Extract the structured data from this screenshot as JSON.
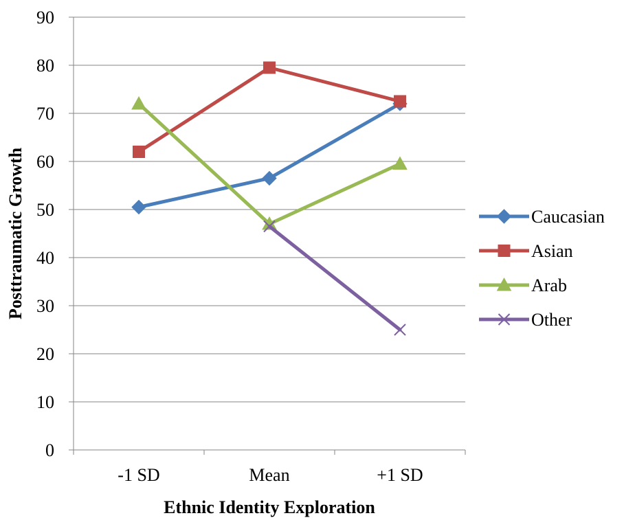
{
  "chart_data": {
    "type": "line",
    "title": "",
    "xlabel": "Ethnic Identity Exploration",
    "ylabel": "Posttraumatic Growth",
    "categories": [
      "-1 SD",
      "Mean",
      "+1 SD"
    ],
    "ylim": [
      0,
      90
    ],
    "yticks": [
      0,
      10,
      20,
      30,
      40,
      50,
      60,
      70,
      80,
      90
    ],
    "grid": true,
    "legend_position": "right",
    "series": [
      {
        "name": "Caucasian",
        "values": [
          50.5,
          56.5,
          72
        ],
        "color": "#4A7EBB",
        "marker": "diamond"
      },
      {
        "name": "Asian",
        "values": [
          62,
          79.5,
          72.5
        ],
        "color": "#BE4B48",
        "marker": "square"
      },
      {
        "name": "Arab",
        "values": [
          72,
          47,
          59.5
        ],
        "color": "#98B954",
        "marker": "triangle"
      },
      {
        "name": "Other",
        "values": [
          null,
          46.5,
          25
        ],
        "color": "#7D60A0",
        "marker": "x"
      }
    ]
  }
}
